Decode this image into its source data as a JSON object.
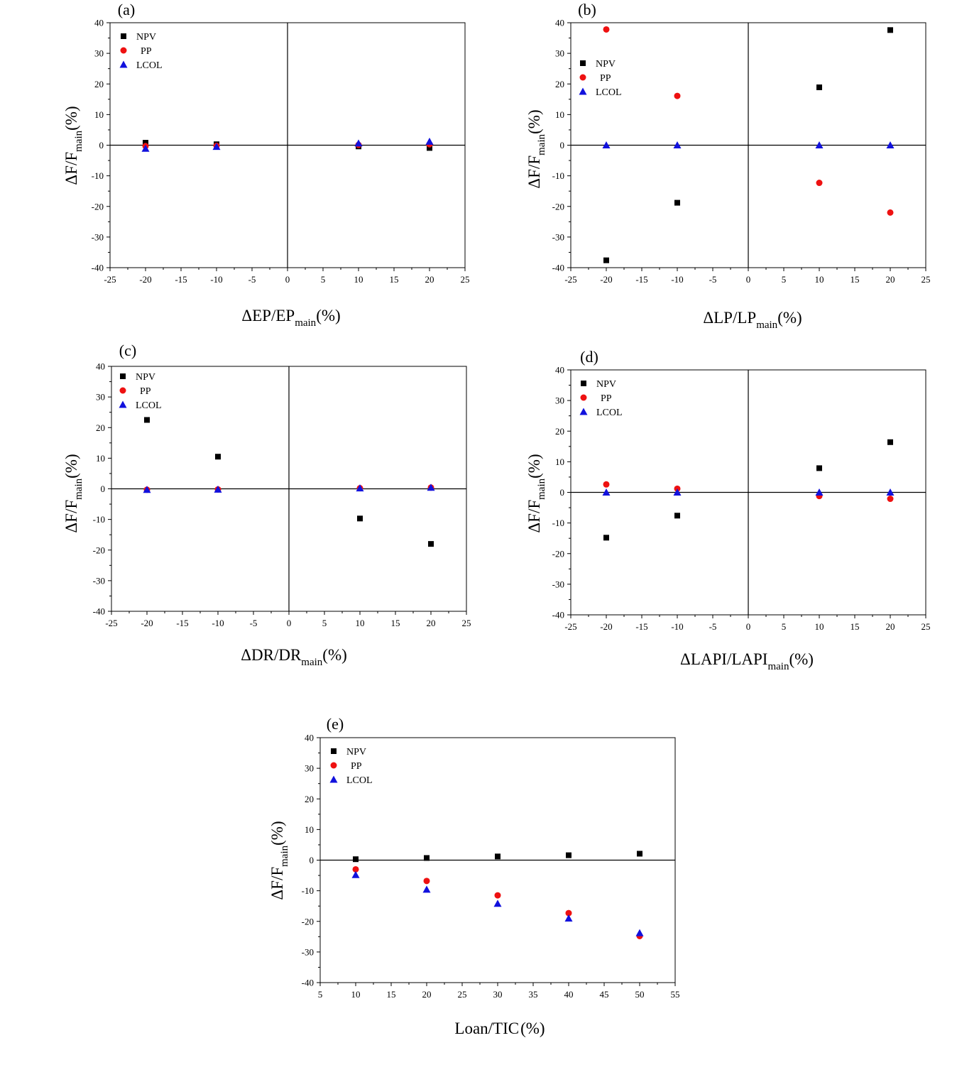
{
  "figure": {
    "legend": [
      "NPV",
      "PP",
      "LCOL"
    ],
    "colors": {
      "NPV": "#000000",
      "PP": "#ee1111",
      "LCOL": "#1111dd"
    },
    "markers": {
      "NPV": "square",
      "PP": "circle",
      "LCOL": "triangle"
    }
  },
  "chart_data": [
    {
      "type": "scatter",
      "panel_label": "(a)",
      "xlabel": {
        "main": "ΔEP/EP",
        "sub": "main",
        "suffix": "(%)"
      },
      "ylabel": {
        "main": "ΔF/F",
        "sub": "main",
        "suffix": "(%)"
      },
      "xlim": [
        -25,
        25
      ],
      "ylim": [
        -40,
        40
      ],
      "xticks": [
        "-25",
        "-20",
        "-15",
        "-10",
        "-5",
        "0",
        "5",
        "10",
        "15",
        "20",
        "25"
      ],
      "yticks": [
        "-40",
        "-30",
        "-20",
        "-10",
        "0",
        "10",
        "20",
        "30",
        "40"
      ],
      "legend_position": "top-left",
      "x": [
        -20,
        -10,
        10,
        20
      ],
      "series": [
        {
          "name": "NPV",
          "values": [
            0.8,
            0.3,
            -0.4,
            -0.9
          ]
        },
        {
          "name": "PP",
          "values": [
            -0.3,
            -0.2,
            0.1,
            0.3
          ]
        },
        {
          "name": "LCOL",
          "values": [
            -1.1,
            -0.5,
            0.6,
            1.2
          ]
        }
      ]
    },
    {
      "type": "scatter",
      "panel_label": "(b)",
      "xlabel": {
        "main": "ΔLP/LP",
        "sub": "main",
        "suffix": "(%)"
      },
      "ylabel": {
        "main": "ΔF/F",
        "sub": "main",
        "suffix": "(%)"
      },
      "xlim": [
        -25,
        25
      ],
      "ylim": [
        -40,
        40
      ],
      "xticks": [
        "-25",
        "-20",
        "-15",
        "-10",
        "-5",
        "0",
        "5",
        "10",
        "15",
        "20",
        "25"
      ],
      "yticks": [
        "-40",
        "-30",
        "-20",
        "-10",
        "0",
        "10",
        "20",
        "30",
        "40"
      ],
      "legend_position": "top-left",
      "x": [
        -20,
        -10,
        10,
        20
      ],
      "series": [
        {
          "name": "NPV",
          "values": [
            -37.6,
            -18.8,
            18.9,
            37.6
          ]
        },
        {
          "name": "PP",
          "values": [
            37.8,
            16.1,
            -12.3,
            -22.0
          ]
        },
        {
          "name": "LCOL",
          "values": [
            0,
            0,
            0,
            0
          ]
        }
      ]
    },
    {
      "type": "scatter",
      "panel_label": "(c)",
      "xlabel": {
        "main": "ΔDR/DR",
        "sub": "main",
        "suffix": "(%)"
      },
      "ylabel": {
        "main": "ΔF/F",
        "sub": "main",
        "suffix": "(%)"
      },
      "xlim": [
        -25,
        25
      ],
      "ylim": [
        -40,
        40
      ],
      "xticks": [
        "-25",
        "-20",
        "-15",
        "-10",
        "-5",
        "0",
        "5",
        "10",
        "15",
        "20",
        "25"
      ],
      "yticks": [
        "-40",
        "-30",
        "-20",
        "-10",
        "0",
        "10",
        "20",
        "30",
        "40"
      ],
      "legend_position": "top-left",
      "x": [
        -20,
        -10,
        10,
        20
      ],
      "series": [
        {
          "name": "NPV",
          "values": [
            22.5,
            10.5,
            -9.7,
            -18.0
          ]
        },
        {
          "name": "PP",
          "values": [
            -0.3,
            -0.2,
            0.2,
            0.4
          ]
        },
        {
          "name": "LCOL",
          "values": [
            -0.3,
            -0.2,
            0.2,
            0.4
          ]
        }
      ]
    },
    {
      "type": "scatter",
      "panel_label": "(d)",
      "xlabel": {
        "main": "ΔLAPI/LAPI",
        "sub": "main",
        "suffix": "(%)"
      },
      "ylabel": {
        "main": "ΔF/F",
        "sub": "main",
        "suffix": "(%)"
      },
      "xlim": [
        -25,
        25
      ],
      "ylim": [
        -40,
        40
      ],
      "xticks": [
        "-25",
        "-20",
        "-15",
        "-10",
        "-5",
        "0",
        "5",
        "10",
        "15",
        "20",
        "25"
      ],
      "yticks": [
        "-40",
        "-30",
        "-20",
        "-10",
        "0",
        "10",
        "20",
        "30",
        "40"
      ],
      "legend_position": "top-left",
      "x": [
        -20,
        -10,
        10,
        20
      ],
      "series": [
        {
          "name": "NPV",
          "values": [
            -14.8,
            -7.6,
            7.9,
            16.4
          ]
        },
        {
          "name": "PP",
          "values": [
            2.6,
            1.2,
            -1.2,
            -2.1
          ]
        },
        {
          "name": "LCOL",
          "values": [
            0,
            0,
            0,
            0
          ]
        }
      ]
    },
    {
      "type": "scatter",
      "panel_label": "(e)",
      "xlabel": {
        "main": "Loan/TIC",
        "sub": "",
        "suffix": "(%)"
      },
      "ylabel": {
        "main": "ΔF/F",
        "sub": "main",
        "suffix": "(%)"
      },
      "xlim": [
        5,
        55
      ],
      "ylim": [
        -40,
        40
      ],
      "xticks": [
        "5",
        "10",
        "15",
        "20",
        "25",
        "30",
        "35",
        "40",
        "45",
        "50",
        "55"
      ],
      "yticks": [
        "-40",
        "-30",
        "-20",
        "-10",
        "0",
        "10",
        "20",
        "30",
        "40"
      ],
      "legend_position": "top-left",
      "x": [
        10,
        20,
        30,
        40,
        50
      ],
      "series": [
        {
          "name": "NPV",
          "values": [
            0.3,
            0.7,
            1.2,
            1.6,
            2.1
          ]
        },
        {
          "name": "PP",
          "values": [
            -3.0,
            -6.8,
            -11.5,
            -17.3,
            -24.8
          ]
        },
        {
          "name": "LCOL",
          "values": [
            -4.8,
            -9.6,
            -14.2,
            -19.0,
            -23.8
          ]
        }
      ]
    }
  ]
}
